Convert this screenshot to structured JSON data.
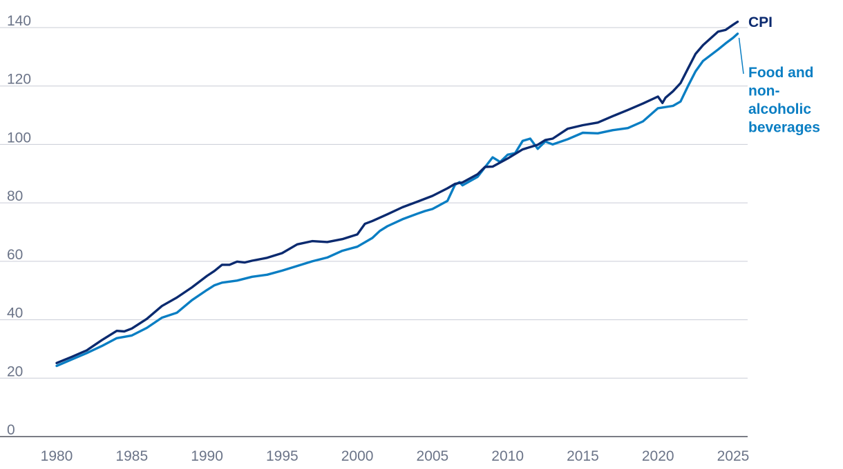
{
  "chart_data": {
    "type": "line",
    "title": "",
    "xlabel": "",
    "ylabel": "",
    "xlim": [
      1980,
      2025.6
    ],
    "ylim": [
      0,
      140
    ],
    "yticks": [
      0,
      20,
      40,
      60,
      80,
      100,
      120,
      140
    ],
    "xticks": [
      1980,
      1985,
      1990,
      1995,
      2000,
      2005,
      2010,
      2015,
      2020,
      2025
    ],
    "grid": true,
    "legend": "right",
    "series": [
      {
        "name": "CPI",
        "color": "#0b2a6f",
        "legend_lines": [
          "CPI"
        ],
        "points": [
          [
            1980.0,
            25.2
          ],
          [
            1981.0,
            27.3
          ],
          [
            1982.0,
            29.5
          ],
          [
            1983.0,
            33.0
          ],
          [
            1984.0,
            36.2
          ],
          [
            1984.5,
            36.0
          ],
          [
            1985.0,
            37.0
          ],
          [
            1986.0,
            40.3
          ],
          [
            1987.0,
            44.7
          ],
          [
            1988.0,
            47.6
          ],
          [
            1989.0,
            51.1
          ],
          [
            1990.0,
            55.0
          ],
          [
            1990.5,
            56.7
          ],
          [
            1991.0,
            58.8
          ],
          [
            1991.5,
            58.8
          ],
          [
            1992.0,
            59.9
          ],
          [
            1992.5,
            59.6
          ],
          [
            1993.0,
            60.2
          ],
          [
            1994.0,
            61.2
          ],
          [
            1995.0,
            62.8
          ],
          [
            1996.0,
            65.8
          ],
          [
            1997.0,
            66.9
          ],
          [
            1998.0,
            66.6
          ],
          [
            1999.0,
            67.6
          ],
          [
            2000.0,
            69.2
          ],
          [
            2000.5,
            72.8
          ],
          [
            2001.0,
            73.8
          ],
          [
            2002.0,
            76.1
          ],
          [
            2003.0,
            78.5
          ],
          [
            2004.0,
            80.4
          ],
          [
            2005.0,
            82.4
          ],
          [
            2006.0,
            85.0
          ],
          [
            2006.5,
            86.5
          ],
          [
            2007.0,
            87.0
          ],
          [
            2008.0,
            89.8
          ],
          [
            2008.5,
            92.3
          ],
          [
            2009.0,
            92.4
          ],
          [
            2010.0,
            95.2
          ],
          [
            2011.0,
            98.3
          ],
          [
            2012.0,
            99.9
          ],
          [
            2012.5,
            101.5
          ],
          [
            2013.0,
            102.0
          ],
          [
            2014.0,
            105.4
          ],
          [
            2015.0,
            106.6
          ],
          [
            2016.0,
            107.5
          ],
          [
            2017.0,
            109.7
          ],
          [
            2018.0,
            111.8
          ],
          [
            2019.0,
            114.0
          ],
          [
            2020.0,
            116.4
          ],
          [
            2020.3,
            114.2
          ],
          [
            2020.5,
            116.0
          ],
          [
            2021.0,
            118.2
          ],
          [
            2021.5,
            121.0
          ],
          [
            2022.0,
            126.0
          ],
          [
            2022.5,
            131.0
          ],
          [
            2023.0,
            134.0
          ],
          [
            2024.0,
            138.6
          ],
          [
            2024.5,
            139.2
          ],
          [
            2025.0,
            141.0
          ],
          [
            2025.3,
            142.0
          ]
        ]
      },
      {
        "name": "Food and non-alcoholic beverages",
        "color": "#0a7ec3",
        "legend_lines": [
          "Food and",
          "non-",
          "alcoholic",
          "beverages"
        ],
        "points": [
          [
            1980.0,
            24.2
          ],
          [
            1981.0,
            26.4
          ],
          [
            1982.0,
            28.6
          ],
          [
            1983.0,
            31.0
          ],
          [
            1984.0,
            33.7
          ],
          [
            1985.0,
            34.6
          ],
          [
            1986.0,
            37.2
          ],
          [
            1987.0,
            40.7
          ],
          [
            1988.0,
            42.4
          ],
          [
            1989.0,
            46.7
          ],
          [
            1990.0,
            50.2
          ],
          [
            1990.5,
            51.8
          ],
          [
            1991.0,
            52.7
          ],
          [
            1992.0,
            53.4
          ],
          [
            1993.0,
            54.7
          ],
          [
            1994.0,
            55.4
          ],
          [
            1995.0,
            56.8
          ],
          [
            1996.0,
            58.4
          ],
          [
            1997.0,
            60.0
          ],
          [
            1998.0,
            61.3
          ],
          [
            1999.0,
            63.6
          ],
          [
            2000.0,
            65.0
          ],
          [
            2001.0,
            68.0
          ],
          [
            2001.5,
            70.4
          ],
          [
            2002.0,
            72.0
          ],
          [
            2003.0,
            74.4
          ],
          [
            2004.0,
            76.3
          ],
          [
            2004.5,
            77.2
          ],
          [
            2005.0,
            77.9
          ],
          [
            2006.0,
            80.7
          ],
          [
            2006.5,
            86.2
          ],
          [
            2006.8,
            87.1
          ],
          [
            2007.0,
            86.0
          ],
          [
            2008.0,
            88.9
          ],
          [
            2009.0,
            95.6
          ],
          [
            2009.5,
            94.0
          ],
          [
            2010.0,
            96.5
          ],
          [
            2010.5,
            97.0
          ],
          [
            2011.0,
            101.2
          ],
          [
            2011.5,
            102.0
          ],
          [
            2012.0,
            98.5
          ],
          [
            2012.5,
            101.0
          ],
          [
            2013.0,
            100.0
          ],
          [
            2014.0,
            101.8
          ],
          [
            2015.0,
            104.0
          ],
          [
            2016.0,
            103.8
          ],
          [
            2017.0,
            104.9
          ],
          [
            2018.0,
            105.6
          ],
          [
            2019.0,
            107.9
          ],
          [
            2020.0,
            112.4
          ],
          [
            2021.0,
            113.2
          ],
          [
            2021.5,
            114.7
          ],
          [
            2022.0,
            120.0
          ],
          [
            2022.5,
            125.0
          ],
          [
            2023.0,
            128.6
          ],
          [
            2024.0,
            132.5
          ],
          [
            2024.5,
            134.6
          ],
          [
            2025.0,
            136.5
          ],
          [
            2025.3,
            137.9
          ]
        ]
      }
    ]
  }
}
